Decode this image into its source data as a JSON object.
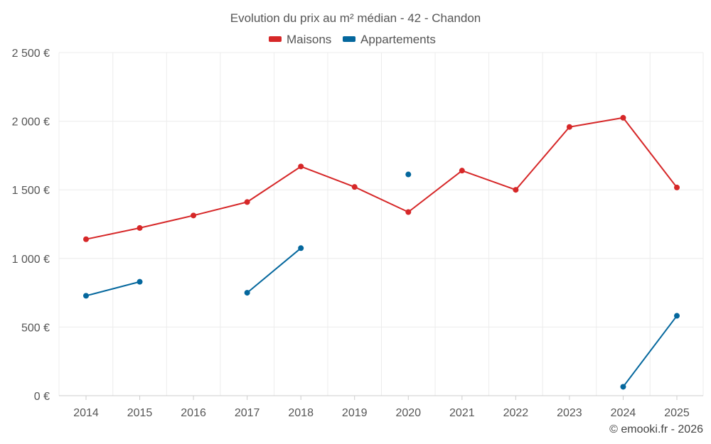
{
  "chart_data": {
    "type": "line",
    "title": "Evolution du prix au m² médian - 42 - Chandon",
    "categories": [
      "2014",
      "2015",
      "2016",
      "2017",
      "2018",
      "2019",
      "2020",
      "2021",
      "2022",
      "2023",
      "2024",
      "2025"
    ],
    "ylim": [
      0,
      2500
    ],
    "yticks": [
      0,
      500,
      1000,
      1500,
      2000,
      2500
    ],
    "ytick_labels": [
      "0 €",
      "500 €",
      "1 000 €",
      "1 500 €",
      "2 000 €",
      "2 500 €"
    ],
    "grid": true,
    "legend_position": "top-center",
    "series": [
      {
        "name": "Maisons",
        "color": "#d62728",
        "values": [
          1140,
          1222,
          1313,
          1411,
          1670,
          1521,
          1338,
          1640,
          1500,
          1958,
          2025,
          1517
        ]
      },
      {
        "name": "Appartements",
        "color": "#04679d",
        "values": [
          728,
          830,
          null,
          750,
          1075,
          null,
          1612,
          null,
          null,
          null,
          65,
          582
        ]
      }
    ]
  },
  "credit": "© emooki.fr - 2026"
}
